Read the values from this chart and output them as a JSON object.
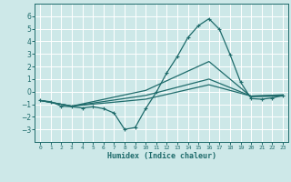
{
  "xlabel": "Humidex (Indice chaleur)",
  "xlim": [
    -0.5,
    23.5
  ],
  "ylim": [
    -4,
    7
  ],
  "yticks": [
    -3,
    -2,
    -1,
    0,
    1,
    2,
    3,
    4,
    5,
    6
  ],
  "xticks": [
    0,
    1,
    2,
    3,
    4,
    5,
    6,
    7,
    8,
    9,
    10,
    11,
    12,
    13,
    14,
    15,
    16,
    17,
    18,
    19,
    20,
    21,
    22,
    23
  ],
  "bg_color": "#cde8e8",
  "grid_color": "#b8d8d8",
  "line_color": "#1e6b6b",
  "lines": [
    {
      "x": [
        0,
        1,
        2,
        3,
        4,
        5,
        6,
        7,
        8,
        9,
        10,
        11,
        12,
        13,
        14,
        15,
        16,
        17,
        18,
        19,
        20,
        21,
        22,
        23
      ],
      "y": [
        -0.7,
        -0.8,
        -1.15,
        -1.2,
        -1.3,
        -1.2,
        -1.35,
        -1.7,
        -3.0,
        -2.85,
        -1.35,
        -0.05,
        1.5,
        2.8,
        4.3,
        5.25,
        5.8,
        4.95,
        2.95,
        0.75,
        -0.55,
        -0.6,
        -0.5,
        -0.3
      ],
      "marker": true
    },
    {
      "x": [
        0,
        3,
        10,
        16,
        20,
        23
      ],
      "y": [
        -0.7,
        -1.15,
        -0.6,
        0.55,
        -0.35,
        -0.25
      ],
      "marker": false
    },
    {
      "x": [
        0,
        3,
        10,
        16,
        20,
        23
      ],
      "y": [
        -0.7,
        -1.15,
        -0.3,
        1.0,
        -0.35,
        -0.3
      ],
      "marker": false
    },
    {
      "x": [
        0,
        3,
        10,
        16,
        20,
        23
      ],
      "y": [
        -0.7,
        -1.15,
        0.1,
        2.4,
        -0.4,
        -0.35
      ],
      "marker": false
    }
  ]
}
